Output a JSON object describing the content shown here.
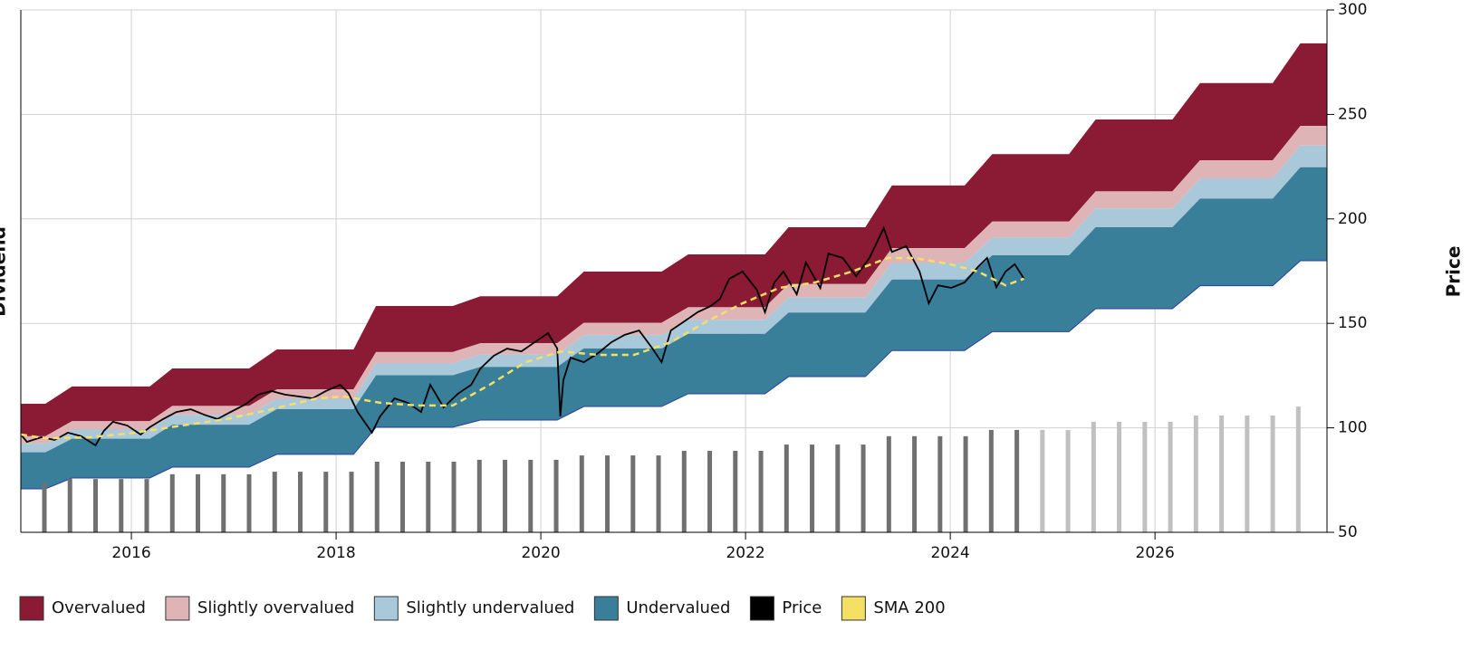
{
  "chart_data": {
    "type": "area",
    "y_label": "Price",
    "y2_label": "Dividend",
    "xlim": [
      2014.92,
      2027.68
    ],
    "xticks": [
      2016,
      2018,
      2020,
      2022,
      2024,
      2026
    ],
    "ylim": [
      50,
      300
    ],
    "yticks": [
      50,
      100,
      150,
      200,
      250,
      300
    ],
    "grid": true,
    "legend": "bottom",
    "series": [
      {
        "name": "Overvalued",
        "color": "#8b1a34",
        "x": [
          2014.92,
          2015.16,
          2015.42,
          2016.18,
          2016.4,
          2017.15,
          2017.42,
          2018.17,
          2018.39,
          2019.14,
          2019.41,
          2020.16,
          2020.42,
          2021.18,
          2021.44,
          2022.19,
          2022.42,
          2023.17,
          2023.43,
          2024.14,
          2024.41,
          2025.16,
          2025.42,
          2026.17,
          2026.44,
          2027.15,
          2027.42,
          2027.68
        ],
        "values": [
          111.5,
          111.5,
          119.8,
          119.8,
          128.4,
          128.4,
          137.5,
          137.5,
          158.3,
          158.3,
          163,
          163,
          174.8,
          174.8,
          183,
          183,
          196,
          196,
          216,
          216,
          231,
          231,
          247.6,
          247.6,
          265,
          265,
          284,
          284
        ]
      },
      {
        "name": "Slightly overvalued",
        "color": "#dfb4b6",
        "x": [
          2014.92,
          2015.16,
          2015.42,
          2016.18,
          2016.4,
          2017.15,
          2017.42,
          2018.17,
          2018.39,
          2019.14,
          2019.41,
          2020.16,
          2020.42,
          2021.18,
          2021.44,
          2022.19,
          2022.42,
          2023.17,
          2023.43,
          2024.14,
          2024.41,
          2025.16,
          2025.42,
          2026.17,
          2026.44,
          2027.15,
          2027.42,
          2027.68
        ],
        "values": [
          96,
          96,
          103.2,
          103.2,
          110.5,
          110.5,
          118.4,
          118.4,
          136.3,
          136.3,
          140.5,
          140.5,
          150.3,
          150.3,
          157.7,
          157.7,
          168.8,
          168.8,
          186,
          186,
          198.7,
          198.7,
          213.2,
          213.2,
          228.1,
          228.1,
          244.5,
          244.5
        ]
      },
      {
        "name": "Slightly undervalued",
        "color": "#a9c8da",
        "x": [
          2014.92,
          2015.16,
          2015.42,
          2016.18,
          2016.4,
          2017.15,
          2017.42,
          2018.17,
          2018.39,
          2019.14,
          2019.41,
          2020.16,
          2020.42,
          2021.18,
          2021.44,
          2022.19,
          2022.42,
          2023.17,
          2023.43,
          2024.14,
          2024.41,
          2025.16,
          2025.42,
          2026.17,
          2026.44,
          2027.15,
          2027.42,
          2027.68
        ],
        "values": [
          92.4,
          92.4,
          99.2,
          99.2,
          106.2,
          106.2,
          113.9,
          113.9,
          131,
          131,
          135.1,
          135.1,
          144.4,
          144.4,
          151.7,
          151.7,
          162.4,
          162.4,
          178.9,
          178.9,
          191.1,
          191.1,
          205,
          205,
          219.4,
          219.4,
          235.1,
          235.1
        ]
      },
      {
        "name": "Undervalued",
        "color": "#3a7f99",
        "x": [
          2014.92,
          2015.16,
          2015.42,
          2016.18,
          2016.4,
          2017.15,
          2017.42,
          2018.17,
          2018.39,
          2019.14,
          2019.41,
          2020.16,
          2020.42,
          2021.18,
          2021.44,
          2022.19,
          2022.42,
          2023.17,
          2023.43,
          2024.14,
          2024.41,
          2025.16,
          2025.42,
          2026.17,
          2026.44,
          2027.15,
          2027.42,
          2027.68
        ],
        "values": [
          88.3,
          88.3,
          94.8,
          94.8,
          101.5,
          101.5,
          108.9,
          108.9,
          125.2,
          125.2,
          129.2,
          129.2,
          138,
          138,
          145,
          145,
          155.2,
          155.2,
          171,
          171,
          182.6,
          182.6,
          196,
          196,
          209.7,
          209.7,
          224.7,
          224.7
        ],
        "lower": [
          70.8,
          70.8,
          76,
          76,
          81.2,
          81.2,
          87.3,
          87.3,
          100.3,
          100.3,
          103.7,
          103.7,
          110.2,
          110.2,
          116.3,
          116.3,
          124.5,
          124.5,
          137,
          137,
          146,
          146,
          157,
          157,
          168,
          168,
          180,
          180
        ]
      },
      {
        "name": "Price",
        "color": "#000000",
        "x": [
          2014.92,
          2014.98,
          2015.12,
          2015.25,
          2015.38,
          2015.51,
          2015.65,
          2015.73,
          2015.82,
          2015.96,
          2016.09,
          2016.18,
          2016.31,
          2016.44,
          2016.58,
          2016.71,
          2016.84,
          2016.97,
          2017.11,
          2017.24,
          2017.37,
          2017.5,
          2017.64,
          2017.77,
          2017.9,
          2018.04,
          2018.12,
          2018.21,
          2018.35,
          2018.43,
          2018.57,
          2018.7,
          2018.83,
          2018.92,
          2019.05,
          2019.19,
          2019.32,
          2019.41,
          2019.54,
          2019.67,
          2019.81,
          2019.94,
          2020.07,
          2020.16,
          2020.19,
          2020.22,
          2020.29,
          2020.42,
          2020.56,
          2020.69,
          2020.82,
          2020.96,
          2021.09,
          2021.18,
          2021.27,
          2021.4,
          2021.53,
          2021.66,
          2021.75,
          2021.84,
          2021.97,
          2022.11,
          2022.19,
          2022.28,
          2022.37,
          2022.5,
          2022.59,
          2022.73,
          2022.81,
          2022.95,
          2023.08,
          2023.21,
          2023.35,
          2023.43,
          2023.57,
          2023.7,
          2023.79,
          2023.88,
          2024.01,
          2024.14,
          2024.27,
          2024.36,
          2024.45,
          2024.54,
          2024.63,
          2024.72
        ],
        "values": [
          96.8,
          93.3,
          95.5,
          94.2,
          97.7,
          96,
          91.6,
          98.5,
          102.9,
          101.1,
          96.8,
          100.3,
          104.2,
          107.6,
          108.9,
          106.3,
          104.2,
          107.6,
          111.1,
          115.9,
          117.6,
          115.9,
          115,
          114.1,
          117.6,
          120.6,
          116.7,
          107.6,
          97.7,
          105.5,
          114.1,
          112,
          107.6,
          120.6,
          109.8,
          116.3,
          120.6,
          128.4,
          134.5,
          137.9,
          136.6,
          141,
          145.3,
          138,
          105.5,
          122.8,
          133.6,
          131.4,
          135.8,
          141,
          144.5,
          146.6,
          138,
          131.4,
          146.6,
          150.9,
          155.3,
          158.3,
          161.7,
          171.3,
          174.8,
          166.1,
          155.3,
          169.5,
          174.8,
          163.9,
          179.1,
          166.9,
          183.4,
          181.3,
          172.6,
          181.3,
          195.6,
          184.2,
          186.9,
          174.8,
          159.6,
          168.2,
          167,
          169.6,
          177,
          181.3,
          167.3,
          174.8,
          178.3,
          171.4
        ]
      },
      {
        "name": "SMA 200",
        "color": "#f5e063",
        "x": [
          2014.92,
          2015.16,
          2015.6,
          2016.04,
          2016.49,
          2016.93,
          2017.37,
          2017.81,
          2018.08,
          2018.43,
          2018.79,
          2019.14,
          2019.5,
          2019.85,
          2020.2,
          2020.56,
          2020.91,
          2021.27,
          2021.62,
          2021.97,
          2022.33,
          2022.68,
          2023.04,
          2023.39,
          2023.65,
          2024.0,
          2024.27,
          2024.54,
          2024.72
        ],
        "values": [
          96.8,
          95,
          95.5,
          97.7,
          101.1,
          104.2,
          108.9,
          114.1,
          115,
          112,
          110.7,
          110.7,
          120.6,
          131.4,
          136.6,
          134.9,
          134.9,
          141,
          150.9,
          159.6,
          167,
          169.6,
          174.8,
          181.3,
          181.3,
          178.3,
          174.8,
          168.2,
          171.4
        ]
      }
    ],
    "dividends": [
      {
        "color": "#707070",
        "x": [
          2015.15,
          2015.4,
          2015.65,
          2015.9,
          2016.15,
          2016.4,
          2016.65,
          2016.9,
          2017.15,
          2017.4,
          2017.65,
          2017.9,
          2018.15,
          2018.4,
          2018.65,
          2018.9,
          2019.15,
          2019.4,
          2019.65,
          2019.9,
          2020.15,
          2020.4,
          2020.65,
          2020.9,
          2021.15,
          2021.4,
          2021.65,
          2021.9,
          2022.15,
          2022.4,
          2022.65,
          2022.9,
          2023.15,
          2023.4,
          2023.65,
          2023.9,
          2024.15,
          2024.4,
          2024.65
        ],
        "values": [
          73.5,
          75.5,
          75.5,
          75.5,
          75.5,
          77.8,
          77.8,
          77.8,
          77.8,
          79,
          79,
          79,
          79,
          83.8,
          83.8,
          83.8,
          83.8,
          84.7,
          84.7,
          84.7,
          84.7,
          86.8,
          86.8,
          86.8,
          86.8,
          89,
          89,
          89,
          89,
          92,
          92,
          92,
          92,
          96,
          96,
          96,
          96,
          99,
          99
        ]
      },
      {
        "color": "#c0c0c0",
        "x": [
          2024.9,
          2025.15,
          2025.4,
          2025.65,
          2025.9,
          2026.15,
          2026.4,
          2026.65,
          2026.9,
          2027.15,
          2027.4
        ],
        "values": [
          99,
          99,
          102.9,
          102.9,
          102.9,
          102.9,
          105.9,
          105.9,
          105.9,
          105.9,
          110.2
        ]
      }
    ]
  }
}
